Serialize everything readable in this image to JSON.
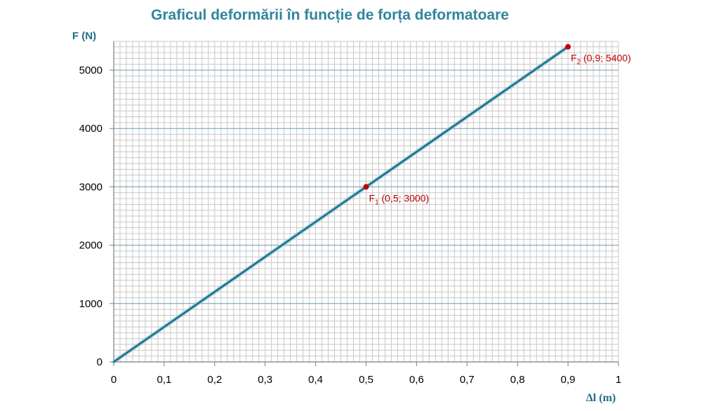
{
  "chart_data": {
    "type": "line",
    "title": "Graficul deformării în funcție de forța deformatoare",
    "ylabel": "F (N)",
    "xlabel": "Δl (m)",
    "xlim": [
      0,
      1
    ],
    "ylim": [
      0,
      5000
    ],
    "x_ticks": [
      "0",
      "0,1",
      "0,2",
      "0,3",
      "0,4",
      "0,5",
      "0,6",
      "0,7",
      "0,8",
      "0,9",
      "1"
    ],
    "y_ticks": [
      "0",
      "1000",
      "2000",
      "3000",
      "4000",
      "5000"
    ],
    "grid": true,
    "series": [
      {
        "x": [
          0,
          0.9
        ],
        "y": [
          0,
          5400
        ],
        "color": "#1f5f7a"
      }
    ],
    "annotations": [
      {
        "x": 0.5,
        "y": 3000,
        "main": "F",
        "sub": "1",
        "rest": " (0,5; 3000)",
        "color": "#c00000"
      },
      {
        "x": 0.9,
        "y": 5400,
        "main": "F",
        "sub": "2",
        "rest": " (0,9; 5400)",
        "color": "#c00000"
      }
    ]
  }
}
